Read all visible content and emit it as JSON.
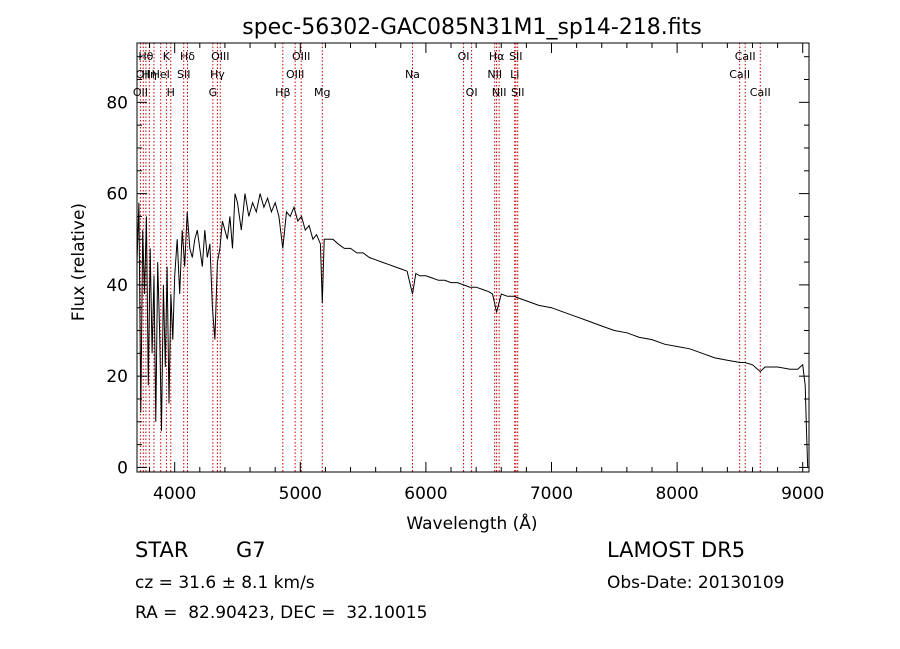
{
  "chart_data": {
    "type": "line",
    "title": "spec-56302-GAC085N31M1_sp14-218.fits",
    "xlabel": "Wavelength (Å)",
    "ylabel": "Flux (relative)",
    "xlim": [
      3700,
      9050
    ],
    "ylim": [
      -1,
      93
    ],
    "x_ticks": [
      4000,
      5000,
      6000,
      7000,
      8000,
      9000
    ],
    "y_ticks": [
      0,
      20,
      40,
      60,
      80
    ],
    "grid": false,
    "line_color": "#000000",
    "marker_color": "#cc0000",
    "series": [
      {
        "x": [
          3700,
          3715,
          3730,
          3745,
          3760,
          3775,
          3790,
          3805,
          3820,
          3835,
          3850,
          3865,
          3880,
          3895,
          3910,
          3925,
          3940,
          3955,
          3970,
          3985,
          4000,
          4020,
          4040,
          4060,
          4080,
          4100,
          4120,
          4140,
          4160,
          4180,
          4200,
          4220,
          4240,
          4260,
          4280,
          4300,
          4320,
          4340,
          4360,
          4380,
          4400,
          4420,
          4440,
          4460,
          4480,
          4500,
          4530,
          4560,
          4590,
          4620,
          4650,
          4680,
          4710,
          4740,
          4770,
          4800,
          4830,
          4861,
          4890,
          4920,
          4950,
          4980,
          5010,
          5040,
          5070,
          5100,
          5130,
          5160,
          5175,
          5190,
          5220,
          5260,
          5300,
          5350,
          5400,
          5450,
          5500,
          5550,
          5600,
          5650,
          5700,
          5750,
          5800,
          5850,
          5893,
          5920,
          5950,
          6000,
          6050,
          6100,
          6150,
          6200,
          6250,
          6300,
          6350,
          6400,
          6450,
          6500,
          6530,
          6563,
          6600,
          6650,
          6700,
          6750,
          6800,
          6900,
          7000,
          7100,
          7200,
          7300,
          7400,
          7500,
          7600,
          7700,
          7800,
          7900,
          8000,
          8100,
          8200,
          8300,
          8400,
          8500,
          8540,
          8600,
          8662,
          8700,
          8800,
          8900,
          8960,
          9000,
          9020,
          9030,
          9040
        ],
        "y": [
          45,
          58,
          12,
          52,
          38,
          55,
          18,
          48,
          25,
          42,
          10,
          45,
          30,
          8,
          40,
          22,
          44,
          14,
          38,
          28,
          42,
          50,
          38,
          52,
          44,
          56,
          48,
          46,
          50,
          52,
          48,
          44,
          52,
          46,
          49,
          35,
          28,
          45,
          48,
          54,
          52,
          50,
          55,
          48,
          60,
          58,
          52,
          60,
          55,
          58,
          56,
          60,
          57,
          59,
          56,
          58,
          55,
          48,
          56,
          55,
          57,
          54,
          55,
          52,
          53,
          50,
          51,
          49,
          36,
          50,
          50,
          50,
          49,
          48,
          48,
          47,
          47,
          46,
          45.5,
          45,
          44.5,
          44,
          43.5,
          43,
          38,
          42.5,
          42,
          42,
          41.5,
          41,
          41,
          40.5,
          40.5,
          40,
          39.5,
          39.5,
          39,
          38.5,
          38,
          34,
          38,
          37.5,
          37.5,
          37,
          36.5,
          35.5,
          35,
          34,
          33,
          32,
          31,
          30,
          29.5,
          28.5,
          28,
          27,
          26.5,
          26,
          25,
          24,
          23.5,
          23,
          23,
          22.5,
          21,
          22,
          22,
          21.5,
          21.5,
          22.5,
          18,
          8,
          0
        ]
      }
    ],
    "line_markers": [
      {
        "x": 3727,
        "top": "OII",
        "row": 2,
        "label": "OII"
      },
      {
        "x": 3750,
        "top": "",
        "row": 1,
        "label": "OII"
      },
      {
        "x": 3771,
        "top": "Hθ",
        "row": 0,
        "label": "Hθ"
      },
      {
        "x": 3798,
        "top": "",
        "row": 1,
        "label": "Hη"
      },
      {
        "x": 3835,
        "top": "",
        "row": 2,
        "label": ""
      },
      {
        "x": 3889,
        "top": "",
        "row": 1,
        "label": "HeI"
      },
      {
        "x": 3934,
        "top": "K",
        "row": 0,
        "label": "K"
      },
      {
        "x": 3969,
        "top": "H",
        "row": 2,
        "label": "H"
      },
      {
        "x": 4072,
        "top": "SII",
        "row": 1,
        "label": "SII"
      },
      {
        "x": 4102,
        "top": "Hδ",
        "row": 0,
        "label": "Hδ"
      },
      {
        "x": 4304,
        "top": "G",
        "row": 2,
        "label": "G"
      },
      {
        "x": 4340,
        "top": "Hγ",
        "row": 1,
        "label": "Hγ"
      },
      {
        "x": 4363,
        "top": "OIII",
        "row": 0,
        "label": "OIII"
      },
      {
        "x": 4861,
        "top": "Hβ",
        "row": 2,
        "label": "Hβ"
      },
      {
        "x": 4959,
        "top": "OIII",
        "row": 1,
        "label": "OIII"
      },
      {
        "x": 5007,
        "top": "OIII",
        "row": 0,
        "label": "OIII"
      },
      {
        "x": 5175,
        "top": "Mg",
        "row": 2,
        "label": "Mg"
      },
      {
        "x": 5893,
        "top": "Na",
        "row": 1,
        "label": "Na"
      },
      {
        "x": 6300,
        "top": "OI",
        "row": 0,
        "label": "OI"
      },
      {
        "x": 6364,
        "top": "OI",
        "row": 2,
        "label": "OI"
      },
      {
        "x": 6548,
        "top": "NII",
        "row": 1,
        "label": "NII"
      },
      {
        "x": 6563,
        "top": "Hα",
        "row": 0,
        "label": "Hα"
      },
      {
        "x": 6583,
        "top": "NII",
        "row": 2,
        "label": "NII"
      },
      {
        "x": 6707,
        "top": "Li",
        "row": 1,
        "label": "Li"
      },
      {
        "x": 6716,
        "top": "SII",
        "row": 0,
        "label": "SII"
      },
      {
        "x": 6731,
        "top": "SII",
        "row": 2,
        "label": "SII"
      },
      {
        "x": 8498,
        "top": "CaII",
        "row": 1,
        "label": "CaII"
      },
      {
        "x": 8542,
        "top": "CaII",
        "row": 0,
        "label": "CaII"
      },
      {
        "x": 8662,
        "top": "CaII",
        "row": 2,
        "label": "CaII"
      }
    ]
  },
  "info": {
    "class": "STAR",
    "subclass": "G7",
    "survey": "LAMOST DR5",
    "cz": "cz = 31.6 ± 8.1 km/s",
    "obs_date": "Obs-Date: 20130109",
    "coords": "RA =  82.90423, DEC =  32.10015"
  }
}
